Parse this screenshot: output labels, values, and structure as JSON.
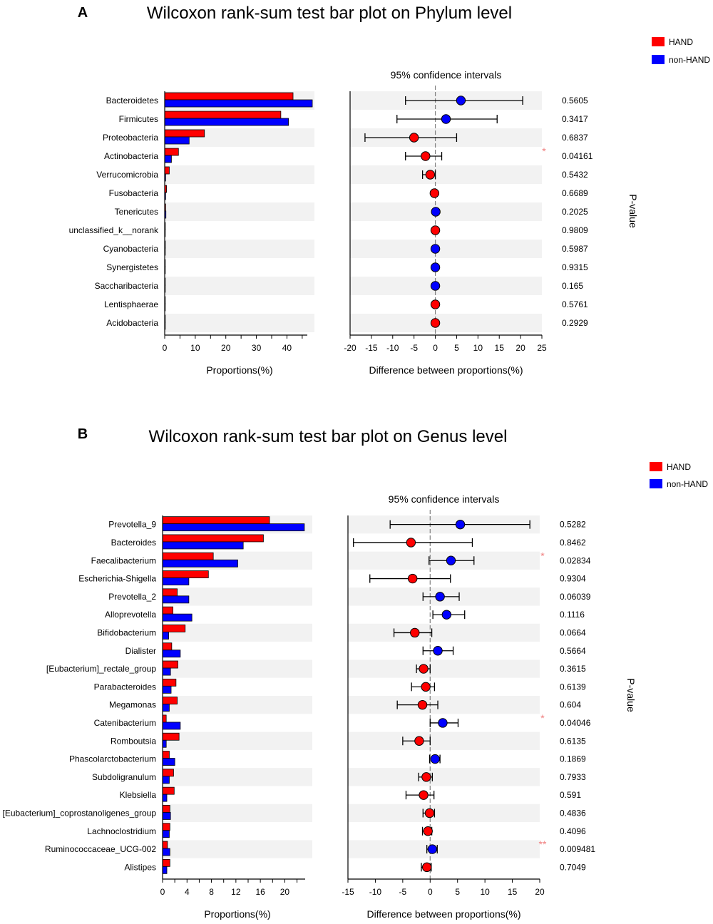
{
  "chart_data": [
    {
      "type": "bar",
      "panel_label": "A",
      "title": "Wilcoxon rank-sum test bar plot on Phylum level",
      "legend": [
        "HAND",
        "non-HAND"
      ],
      "colors": {
        "HAND": "#ff0000",
        "non-HAND": "#0000ff",
        "axis": "#000000",
        "star": "#f08080",
        "stripe": "#f2f2f2",
        "zero_line": "#808080"
      },
      "ci_title": "95% confidence intervals",
      "xlabel": "Proportions(%)",
      "ci_xlabel": "Difference between proportions(%)",
      "pvalue_label": "P-value",
      "xlim": [
        0,
        49
      ],
      "xticks": [
        0,
        10,
        20,
        30,
        40
      ],
      "ci_xlim": [
        -20,
        25
      ],
      "ci_xticks": [
        -20,
        -15,
        -10,
        -5,
        0,
        5,
        10,
        15,
        20,
        25
      ],
      "categories": [
        "Bacteroidetes",
        "Firmicutes",
        "Proteobacteria",
        "Actinobacteria",
        "Verrucomicrobia",
        "Fusobacteria",
        "Tenericutes",
        "unclassified_k__norank",
        "Cyanobacteria",
        "Synergistetes",
        "Saccharibacteria",
        "Lentisphaerae",
        "Acidobacteria"
      ],
      "series": [
        {
          "name": "HAND",
          "values": [
            42.0,
            38.0,
            13.0,
            4.5,
            1.5,
            0.6,
            0.3,
            0.2,
            0.2,
            0.1,
            0.1,
            0.1,
            0.05
          ]
        },
        {
          "name": "non-HAND",
          "values": [
            48.3,
            40.5,
            8.0,
            2.2,
            0.3,
            0.3,
            0.4,
            0.1,
            0.1,
            0.1,
            0.1,
            0.05,
            0.05
          ]
        }
      ],
      "ci": [
        {
          "diff": 6.0,
          "low": -7.0,
          "high": 20.5,
          "group": "non-HAND"
        },
        {
          "diff": 2.5,
          "low": -9.0,
          "high": 14.5,
          "group": "non-HAND"
        },
        {
          "diff": -5.0,
          "low": -16.5,
          "high": 5.0,
          "group": "HAND"
        },
        {
          "diff": -2.3,
          "low": -7.0,
          "high": 1.5,
          "group": "HAND"
        },
        {
          "diff": -1.2,
          "low": -3.0,
          "high": 0.0,
          "group": "HAND"
        },
        {
          "diff": -0.2,
          "low": -0.5,
          "high": 0.2,
          "group": "HAND"
        },
        {
          "diff": 0.1,
          "low": -0.2,
          "high": 0.4,
          "group": "non-HAND"
        },
        {
          "diff": 0.0,
          "low": -0.2,
          "high": 0.2,
          "group": "HAND"
        },
        {
          "diff": 0.0,
          "low": -0.2,
          "high": 0.2,
          "group": "non-HAND"
        },
        {
          "diff": 0.0,
          "low": -0.2,
          "high": 0.2,
          "group": "non-HAND"
        },
        {
          "diff": 0.0,
          "low": -0.2,
          "high": 0.2,
          "group": "non-HAND"
        },
        {
          "diff": 0.0,
          "low": -0.2,
          "high": 0.2,
          "group": "HAND"
        },
        {
          "diff": 0.0,
          "low": -0.2,
          "high": 0.2,
          "group": "HAND"
        }
      ],
      "pvalues": [
        "0.5605",
        "0.3417",
        "0.6837",
        "0.04161",
        "0.5432",
        "0.6689",
        "0.2025",
        "0.9809",
        "0.5987",
        "0.9315",
        "0.165",
        "0.5761",
        "0.2929"
      ],
      "stars": [
        "",
        "",
        "",
        "*",
        "",
        "",
        "",
        "",
        "",
        "",
        "",
        "",
        ""
      ]
    },
    {
      "type": "bar",
      "panel_label": "B",
      "title": "Wilcoxon rank-sum test bar plot on Genus level",
      "legend": [
        "HAND",
        "non-HAND"
      ],
      "colors": {
        "HAND": "#ff0000",
        "non-HAND": "#0000ff",
        "axis": "#000000",
        "star": "#f08080",
        "stripe": "#f2f2f2",
        "zero_line": "#808080"
      },
      "ci_title": "95% confidence intervals",
      "xlabel": "Proportions(%)",
      "ci_xlabel": "Difference between proportions(%)",
      "pvalue_label": "P-value",
      "xlim": [
        0,
        24.5
      ],
      "xticks": [
        0,
        4,
        8,
        12,
        16,
        20
      ],
      "ci_xlim": [
        -15,
        20
      ],
      "ci_xticks": [
        -15,
        -10,
        -5,
        0,
        5,
        10,
        15,
        20
      ],
      "categories": [
        "Prevotella_9",
        "Bacteroides",
        "Faecalibacterium",
        "Escherichia-Shigella",
        "Prevotella_2",
        "Alloprevotella",
        "Bifidobacterium",
        "Dialister",
        "[Eubacterium]_rectale_group",
        "Parabacteroides",
        "Megamonas",
        "Catenibacterium",
        "Romboutsia",
        "Phascolarctobacterium",
        "Subdoligranulum",
        "Klebsiella",
        "[Eubacterium]_coprostanoligenes_group",
        "Lachnoclostridium",
        "Ruminococcaceae_UCG-002",
        "Alistipes"
      ],
      "series": [
        {
          "name": "HAND",
          "values": [
            17.5,
            16.5,
            8.3,
            7.5,
            2.4,
            1.7,
            3.7,
            1.5,
            2.5,
            2.2,
            2.4,
            0.6,
            2.7,
            1.1,
            1.8,
            1.9,
            1.2,
            1.2,
            0.8,
            1.2
          ]
        },
        {
          "name": "non-HAND",
          "values": [
            23.2,
            13.2,
            12.3,
            4.3,
            4.3,
            4.8,
            1.0,
            2.9,
            1.3,
            1.4,
            1.1,
            2.9,
            0.6,
            2.0,
            1.1,
            0.7,
            1.3,
            1.1,
            1.2,
            0.7
          ]
        }
      ],
      "ci": [
        {
          "diff": 5.5,
          "low": -7.3,
          "high": 18.2,
          "group": "non-HAND"
        },
        {
          "diff": -3.5,
          "low": -14.0,
          "high": 7.7,
          "group": "HAND"
        },
        {
          "diff": 3.8,
          "low": -0.2,
          "high": 8.0,
          "group": "non-HAND"
        },
        {
          "diff": -3.2,
          "low": -11.0,
          "high": 3.7,
          "group": "HAND"
        },
        {
          "diff": 1.8,
          "low": -1.3,
          "high": 5.3,
          "group": "non-HAND"
        },
        {
          "diff": 3.0,
          "low": 0.5,
          "high": 6.3,
          "group": "non-HAND"
        },
        {
          "diff": -2.8,
          "low": -6.6,
          "high": 0.3,
          "group": "HAND"
        },
        {
          "diff": 1.4,
          "low": -1.3,
          "high": 4.2,
          "group": "non-HAND"
        },
        {
          "diff": -1.2,
          "low": -2.5,
          "high": 0.0,
          "group": "HAND"
        },
        {
          "diff": -0.8,
          "low": -3.4,
          "high": 0.8,
          "group": "HAND"
        },
        {
          "diff": -1.4,
          "low": -6.0,
          "high": 1.4,
          "group": "HAND"
        },
        {
          "diff": 2.3,
          "low": 0.0,
          "high": 5.1,
          "group": "non-HAND"
        },
        {
          "diff": -2.0,
          "low": -5.0,
          "high": 0.0,
          "group": "HAND"
        },
        {
          "diff": 0.9,
          "low": -0.1,
          "high": 1.8,
          "group": "non-HAND"
        },
        {
          "diff": -0.7,
          "low": -2.1,
          "high": 0.4,
          "group": "HAND"
        },
        {
          "diff": -1.2,
          "low": -4.4,
          "high": 0.7,
          "group": "HAND"
        },
        {
          "diff": -0.1,
          "low": -1.3,
          "high": 0.8,
          "group": "HAND"
        },
        {
          "diff": -0.4,
          "low": -1.4,
          "high": 0.3,
          "group": "HAND"
        },
        {
          "diff": 0.4,
          "low": -0.6,
          "high": 1.3,
          "group": "non-HAND"
        },
        {
          "diff": -0.6,
          "low": -1.6,
          "high": 0.2,
          "group": "HAND"
        }
      ],
      "pvalues": [
        "0.5282",
        "0.8462",
        "0.02834",
        "0.9304",
        "0.06039",
        "0.1116",
        "0.0664",
        "0.5664",
        "0.3615",
        "0.6139",
        "0.604",
        "0.04046",
        "0.6135",
        "0.1869",
        "0.7933",
        "0.591",
        "0.4836",
        "0.4096",
        "0.009481",
        "0.7049"
      ],
      "stars": [
        "",
        "",
        "*",
        "",
        "",
        "",
        "",
        "",
        "",
        "",
        "",
        "*",
        "",
        "",
        "",
        "",
        "",
        "",
        "**",
        ""
      ]
    }
  ]
}
